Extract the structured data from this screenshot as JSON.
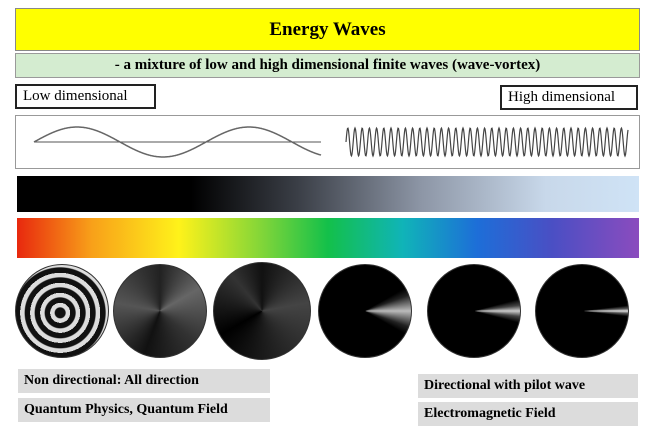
{
  "header": {
    "title": "Energy Waves",
    "subtitle": "- a mixture of low and high dimensional finite waves (wave-vortex)"
  },
  "labels": {
    "low": "Low dimensional",
    "high": "High dimensional"
  },
  "captions": {
    "left": [
      "Non directional: All direction",
      "Quantum Physics, Quantum Field"
    ],
    "right": [
      "Directional with pilot wave",
      "Electromagnetic Field"
    ]
  }
}
